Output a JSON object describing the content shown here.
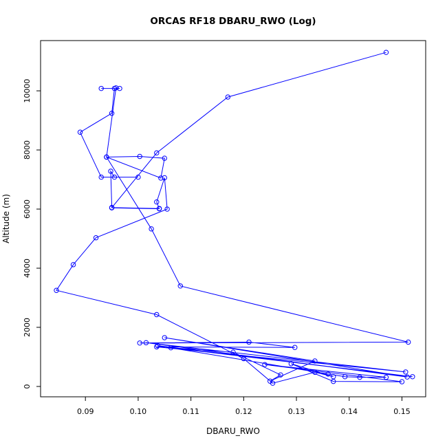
{
  "chart_data": {
    "type": "line",
    "title": "ORCAS RF18 DBARU_RWO (Log)",
    "xlabel": "DBARU_RWO",
    "ylabel": "Altitude (m)",
    "xlim": [
      0.0815,
      0.1545
    ],
    "ylim": [
      -350,
      11700
    ],
    "xticks": [
      0.09,
      0.1,
      0.11,
      0.12,
      0.13,
      0.14,
      0.15
    ],
    "xtick_labels": [
      "0.09",
      "0.10",
      "0.11",
      "0.12",
      "0.13",
      "0.14",
      "0.15"
    ],
    "yticks": [
      0,
      2000,
      4000,
      6000,
      8000,
      10000
    ],
    "ytick_labels": [
      "0",
      "2000",
      "4000",
      "6000",
      "8000",
      "10000"
    ],
    "grid": false,
    "legend": "none",
    "series": [
      {
        "color": "#0000ff",
        "marker": "open-circle",
        "points": [
          [
            0.147,
            11300
          ],
          [
            0.117,
            9790
          ],
          [
            0.1035,
            7900
          ],
          [
            0.095,
            6050
          ],
          [
            0.104,
            6020
          ],
          [
            0.095,
            6050
          ],
          [
            0.0948,
            7280
          ],
          [
            0.0955,
            7080
          ],
          [
            0.1,
            7080
          ],
          [
            0.093,
            7080
          ],
          [
            0.089,
            8600
          ],
          [
            0.095,
            9240
          ],
          [
            0.0955,
            10080
          ],
          [
            0.093,
            10080
          ],
          [
            0.0965,
            10080
          ],
          [
            0.0958,
            10100
          ],
          [
            0.094,
            7760
          ],
          [
            0.1003,
            7780
          ],
          [
            0.105,
            7720
          ],
          [
            0.1043,
            7050
          ],
          [
            0.094,
            7760
          ],
          [
            0.1025,
            5330
          ],
          [
            0.108,
            3400
          ],
          [
            0.1512,
            1500
          ],
          [
            0.1003,
            1470
          ],
          [
            0.121,
            1500
          ],
          [
            0.1297,
            1320
          ],
          [
            0.1035,
            1340
          ],
          [
            0.1507,
            490
          ],
          [
            0.1015,
            1480
          ],
          [
            0.151,
            320
          ],
          [
            0.105,
            1650
          ],
          [
            0.1335,
            860
          ],
          [
            0.125,
            180
          ],
          [
            0.127,
            390
          ],
          [
            0.118,
            1160
          ],
          [
            0.1062,
            1310
          ],
          [
            0.152,
            330
          ],
          [
            0.1037,
            1380
          ],
          [
            0.136,
            420
          ],
          [
            0.1392,
            330
          ],
          [
            0.142,
            310
          ],
          [
            0.147,
            310
          ],
          [
            0.124,
            740
          ],
          [
            0.15,
            160
          ],
          [
            0.137,
            170
          ],
          [
            0.129,
            770
          ],
          [
            0.137,
            330
          ],
          [
            0.1335,
            480
          ],
          [
            0.1255,
            110
          ],
          [
            0.12,
            940
          ],
          [
            0.1035,
            2430
          ],
          [
            0.0845,
            3250
          ],
          [
            0.0877,
            4120
          ],
          [
            0.092,
            5030
          ],
          [
            0.1055,
            6000
          ],
          [
            0.105,
            7060
          ],
          [
            0.1035,
            6240
          ],
          [
            0.104,
            6010
          ],
          [
            0.095,
            6040
          ]
        ]
      }
    ]
  }
}
